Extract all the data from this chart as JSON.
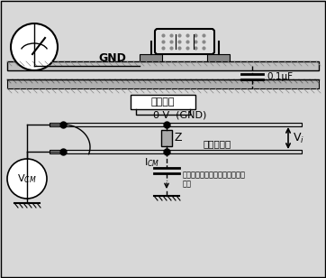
{
  "bg_color": "#d8d8d8",
  "line_color": "#000000",
  "gnd_label": "GND",
  "cap_label": "0.1μF",
  "equiv_label": "等效电路",
  "zero_v_label": "0 V  (GND)",
  "z_label": "Z",
  "vi_label": "Vi",
  "vcm_label": "VCM",
  "icm_label": "ICM",
  "disturb_label": "被干扰的线",
  "stray_label": "印制线与参考大地板之间的寄生\n电容"
}
